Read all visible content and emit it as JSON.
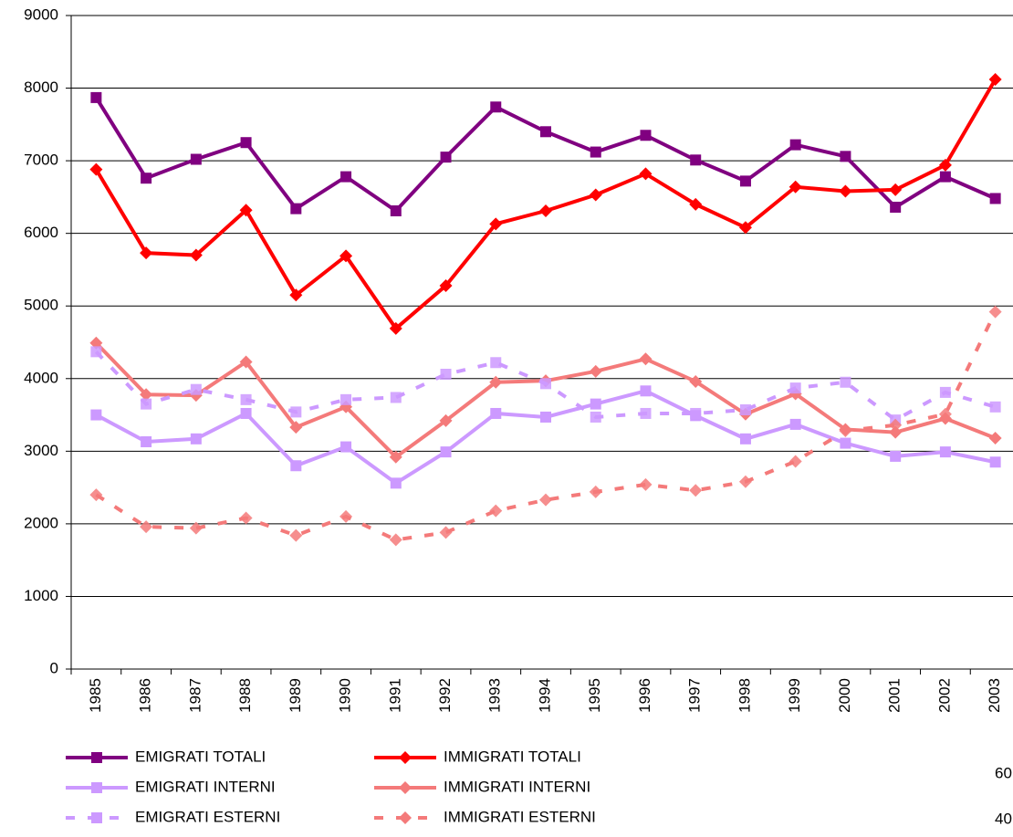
{
  "chart_data": {
    "type": "line",
    "categories": [
      "1985",
      "1986",
      "1987",
      "1988",
      "1989",
      "1990",
      "1991",
      "1992",
      "1993",
      "1994",
      "1995",
      "1996",
      "1997",
      "1998",
      "1999",
      "2000",
      "2001",
      "2002",
      "2003"
    ],
    "ylim": [
      0,
      9000
    ],
    "yticks": [
      0,
      1000,
      2000,
      3000,
      4000,
      5000,
      6000,
      7000,
      8000,
      9000
    ],
    "grid": true,
    "series": [
      {
        "name": "EMIGRATI TOTALI",
        "color": "#800080",
        "marker": "square",
        "dashed": false,
        "values": [
          7870,
          6760,
          7020,
          7250,
          6340,
          6780,
          6310,
          7050,
          7740,
          7400,
          7120,
          7350,
          7010,
          6720,
          7220,
          7060,
          6360,
          6780,
          6480
        ]
      },
      {
        "name": "IMMIGRATI TOTALI",
        "color": "#ff0000",
        "marker": "diamond",
        "dashed": false,
        "values": [
          6880,
          5730,
          5700,
          6320,
          5150,
          5690,
          4690,
          5280,
          6130,
          6310,
          6530,
          6820,
          6400,
          6080,
          6640,
          6580,
          6600,
          6940,
          8120
        ]
      },
      {
        "name": "EMIGRATI INTERNI",
        "color": "#cc99ff",
        "marker": "square",
        "dashed": false,
        "values": [
          3500,
          3130,
          3170,
          3520,
          2800,
          3060,
          2560,
          2990,
          3520,
          3470,
          3650,
          3830,
          3490,
          3170,
          3370,
          3110,
          2930,
          2990,
          2850
        ]
      },
      {
        "name": "IMMIGRATI INTERNI",
        "color": "#f47a7a",
        "marker": "diamond",
        "dashed": false,
        "values": [
          4490,
          3780,
          3770,
          4230,
          3330,
          3610,
          2920,
          3420,
          3950,
          3970,
          4100,
          4270,
          3960,
          3510,
          3790,
          3300,
          3260,
          3450,
          3180
        ]
      },
      {
        "name": "EMIGRATI ESTERNI",
        "color": "#cc99ff",
        "marker": "square",
        "dashed": true,
        "values": [
          4370,
          3650,
          3850,
          3710,
          3540,
          3710,
          3740,
          4060,
          4220,
          3930,
          3470,
          3520,
          3520,
          3570,
          3870,
          3950,
          3430,
          3810,
          3610
        ]
      },
      {
        "name": "IMMIGRATI ESTERNI",
        "color": "#f47a7a",
        "marker": "diamond",
        "dashed": true,
        "values": [
          2400,
          1960,
          1940,
          2080,
          1840,
          2100,
          1780,
          1880,
          2180,
          2330,
          2440,
          2540,
          2460,
          2580,
          2860,
          3280,
          3360,
          3510,
          4920
        ]
      }
    ],
    "side_texts": [
      "60",
      "40"
    ]
  }
}
